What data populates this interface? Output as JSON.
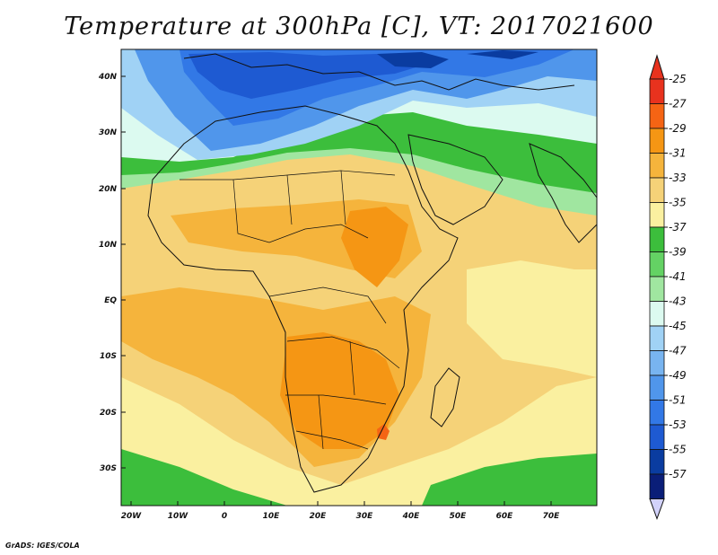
{
  "title": "Temperature at 300hPa [C], VT: 2017021600",
  "credit": "GrADS: IGES/COLA",
  "map": {
    "lat_labels": [
      "40N",
      "30N",
      "20N",
      "10N",
      "EQ",
      "10S",
      "20S",
      "30S"
    ],
    "lon_labels": [
      "20W",
      "10W",
      "0",
      "10E",
      "20E",
      "30E",
      "40E",
      "50E",
      "60E",
      "70E"
    ]
  },
  "colorbar": {
    "labels": [
      "-25",
      "-27",
      "-29",
      "-31",
      "-33",
      "-35",
      "-37",
      "-39",
      "-41",
      "-43",
      "-45",
      "-47",
      "-49",
      "-51",
      "-53",
      "-55",
      "-57"
    ],
    "colors": [
      "#e8321e",
      "#f56414",
      "#f59614",
      "#f5b43c",
      "#f5d278",
      "#faf0a0",
      "#3cbe3c",
      "#64d264",
      "#a0e6a0",
      "#dcfaf0",
      "#a0d2f5",
      "#78b4f0",
      "#5096eb",
      "#3278e6",
      "#1e5ad2",
      "#0a3ca0",
      "#0a1e78"
    ],
    "top_arrow_color": "#e8321e",
    "bottom_arrow_color": "#d2d2fa"
  }
}
